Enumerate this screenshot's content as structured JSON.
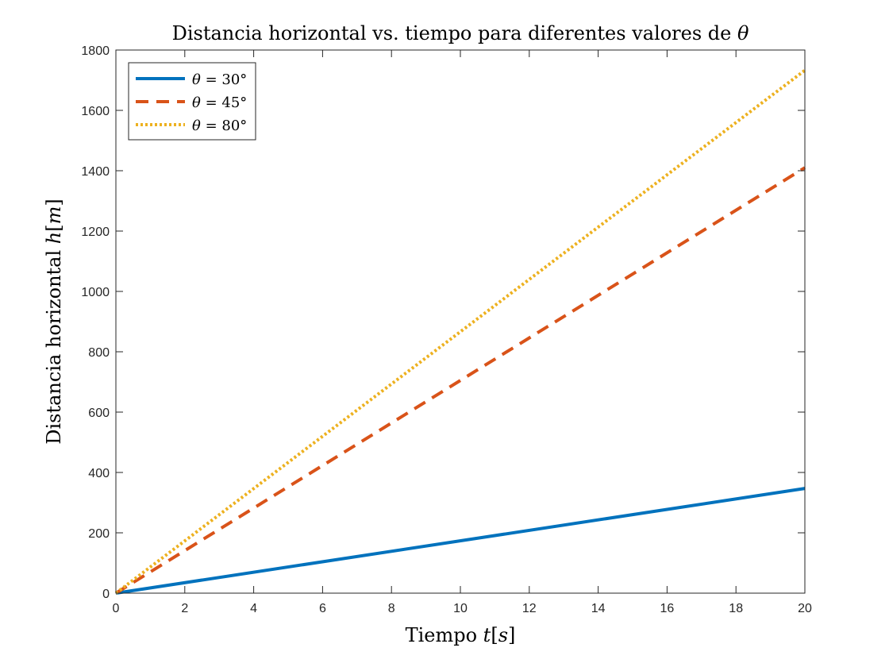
{
  "chart_data": {
    "type": "line",
    "title_parts": [
      "Distancia horizontal vs. tiempo para diferentes valores de ",
      "θ"
    ],
    "xlabel_parts": [
      "Tiempo ",
      "t",
      "[",
      "s",
      "]"
    ],
    "ylabel_parts": [
      "Distancia horizontal ",
      "h",
      "[",
      "m",
      "]"
    ],
    "xlim": [
      0,
      20
    ],
    "ylim": [
      0,
      1800
    ],
    "xticks": [
      "0",
      "2",
      "4",
      "6",
      "8",
      "10",
      "12",
      "14",
      "16",
      "18",
      "20"
    ],
    "yticks": [
      "0",
      "200",
      "400",
      "600",
      "800",
      "1000",
      "1200",
      "1400",
      "1600",
      "1800"
    ],
    "grid": false,
    "legend_position": "top-left",
    "series": [
      {
        "name": "θ = 30°",
        "name_parts": [
          "θ",
          " = 30°"
        ],
        "x": [
          0,
          20
        ],
        "y": [
          0,
          347
        ],
        "color": "#0072BD",
        "style": "solid"
      },
      {
        "name": "θ = 45°",
        "name_parts": [
          "θ",
          " = 45°"
        ],
        "x": [
          0,
          20
        ],
        "y": [
          0,
          1410
        ],
        "color": "#D95319",
        "style": "dashed"
      },
      {
        "name": "θ = 80°",
        "name_parts": [
          "θ",
          " = 80°"
        ],
        "x": [
          0,
          20
        ],
        "y": [
          0,
          1733
        ],
        "color": "#EDB120",
        "style": "dotted"
      }
    ]
  }
}
